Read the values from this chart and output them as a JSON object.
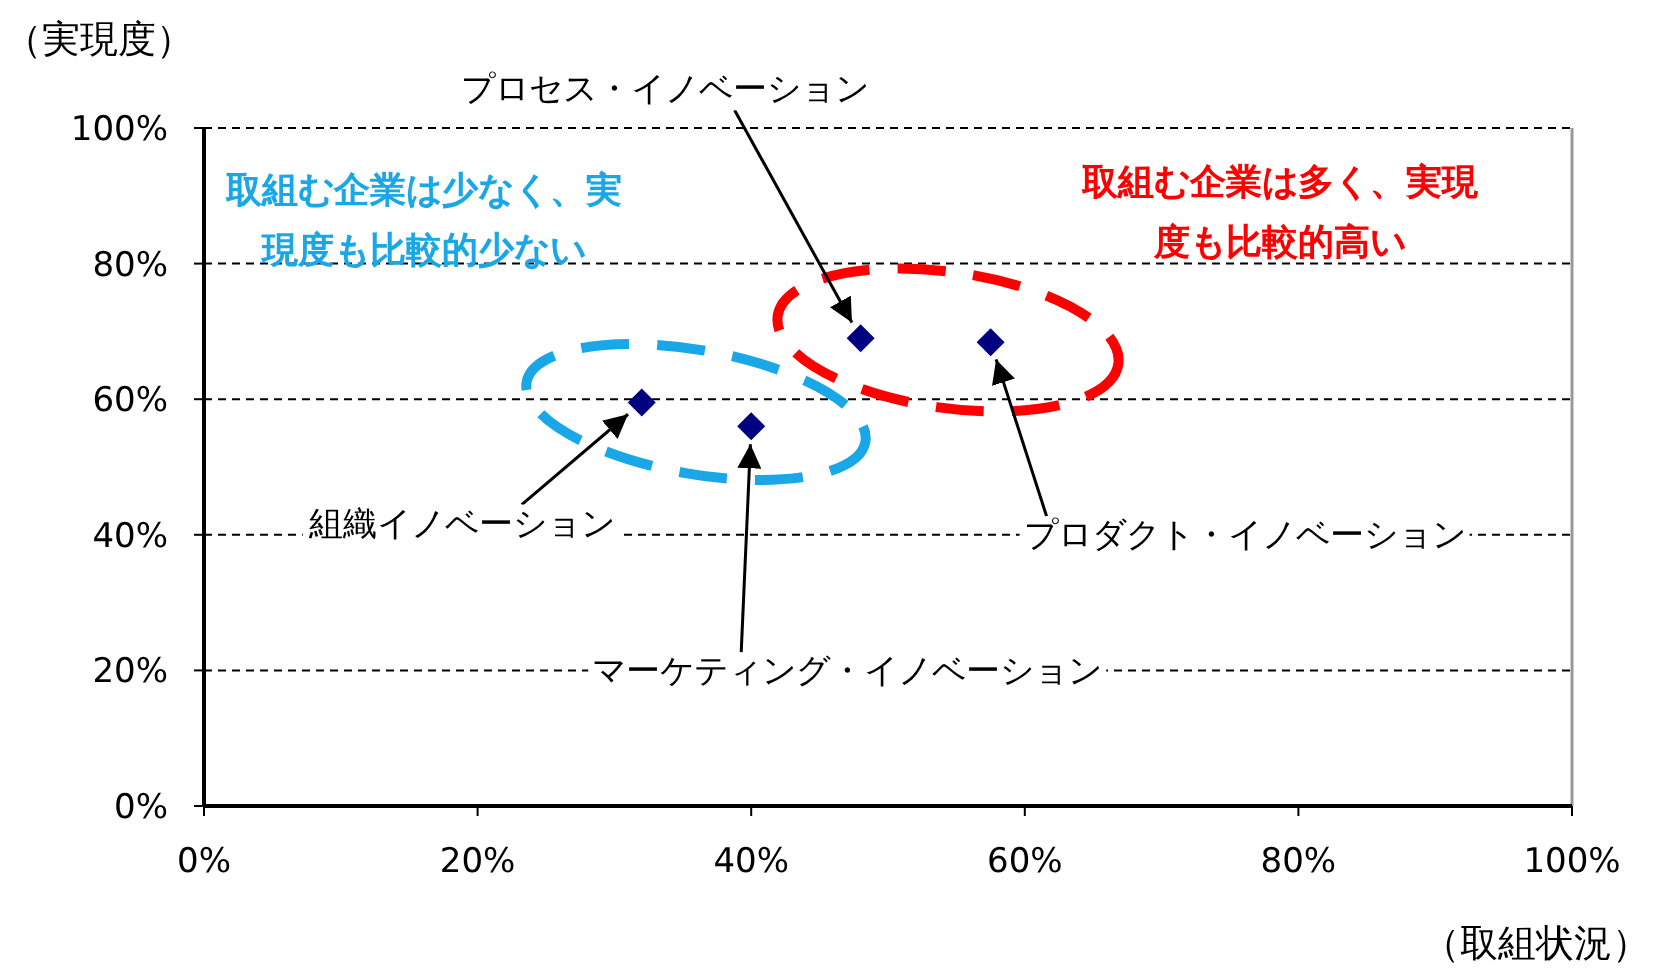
{
  "chart_data": {
    "type": "scatter",
    "xlabel": "（取組状況）",
    "ylabel": "（実現度）",
    "x": [
      32,
      40,
      48,
      57.5
    ],
    "series": [
      {
        "color": "#000080",
        "values": [
          59.5,
          56,
          69,
          68.4
        ]
      }
    ],
    "xlim": [
      0,
      100
    ],
    "ylim": [
      0,
      100
    ],
    "xticks": [
      {
        "value": 0,
        "label": "0%"
      },
      {
        "value": 20,
        "label": "20%"
      },
      {
        "value": 40,
        "label": "40%"
      },
      {
        "value": 60,
        "label": "60%"
      },
      {
        "value": 80,
        "label": "80%"
      },
      {
        "value": 100,
        "label": "100%"
      }
    ],
    "yticks": [
      {
        "value": 0,
        "label": "0%"
      },
      {
        "value": 20,
        "label": "20%"
      },
      {
        "value": 40,
        "label": "40%"
      },
      {
        "value": 60,
        "label": "60%"
      },
      {
        "value": 80,
        "label": "80%"
      },
      {
        "value": 100,
        "label": "100%"
      }
    ],
    "grid": "y",
    "marker": "diamond",
    "annotations": [
      {
        "text": "組織イノベーション",
        "x": 32,
        "y": 59.5
      },
      {
        "text": "マーケティング・イノベーション",
        "x": 40,
        "y": 56
      },
      {
        "text": "プロセス・イノベーション",
        "x": 48,
        "y": 69
      },
      {
        "text": "プロダクト・イノベーション",
        "x": 57.5,
        "y": 68.4
      },
      "取組む企業は少なく、実現度も比較的少ない",
      "取組む企業は多く、実現度も比較的高い"
    ]
  }
}
